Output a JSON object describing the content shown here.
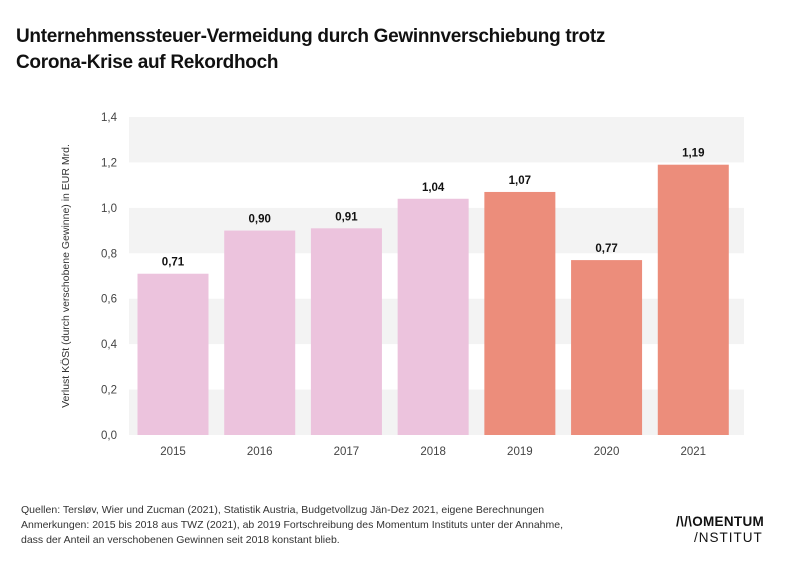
{
  "header": {
    "title_line1": "Unternehmenssteuer-Vermeidung durch Gewinnverschiebung trotz",
    "title_line2": "Corona-Krise auf Rekordhoch"
  },
  "chart_data": {
    "type": "bar",
    "title": "Unternehmenssteuer-Vermeidung durch Gewinnverschiebung trotz Corona-Krise auf Rekordhoch",
    "xlabel": "",
    "ylabel": "Verlust KÖSt (durch verschobene Gewinne) in EUR Mrd.",
    "categories": [
      "2015",
      "2016",
      "2017",
      "2018",
      "2019",
      "2020",
      "2021"
    ],
    "values": [
      0.71,
      0.9,
      0.91,
      1.04,
      1.07,
      0.77,
      1.19
    ],
    "value_labels": [
      "0,71",
      "0,90",
      "0,91",
      "1,04",
      "1,07",
      "0,77",
      "1,19"
    ],
    "bar_colors": [
      "#ecc3dd",
      "#ecc3dd",
      "#ecc3dd",
      "#ecc3dd",
      "#ec8d7b",
      "#ec8d7b",
      "#ec8d7b"
    ],
    "series_groups": [
      {
        "name": "TWZ (2021)",
        "years": [
          "2015",
          "2016",
          "2017",
          "2018"
        ],
        "color": "#ecc3dd"
      },
      {
        "name": "Fortschreibung Momentum Institut",
        "years": [
          "2019",
          "2020",
          "2021"
        ],
        "color": "#ec8d7b"
      }
    ],
    "ylim": [
      0,
      1.4
    ],
    "yticks": [
      0.0,
      0.2,
      0.4,
      0.6,
      0.8,
      1.0,
      1.2,
      1.4
    ],
    "ytick_labels": [
      "0,0",
      "0,2",
      "0,4",
      "0,6",
      "0,8",
      "1,0",
      "1,2",
      "1,4"
    ],
    "grid": "alternating horizontal bands",
    "band_color": "#f3f3f3",
    "legend": "none"
  },
  "footer": {
    "notes": [
      "Quellen: Tersløv, Wier und Zucman (2021), Statistik Austria, Budgetvollzug Jän-Dez 2021, eigene Berechnungen",
      "Anmerkungen: 2015 bis 2018 aus TWZ (2021), ab 2019 Fortschreibung des Momentum Instituts unter der Annahme,",
      "dass der Anteil an verschobenen Gewinnen seit 2018 konstant blieb."
    ],
    "logo_line1": "/\\/\\OMENTUM",
    "logo_line2": "/NSTITUT"
  }
}
